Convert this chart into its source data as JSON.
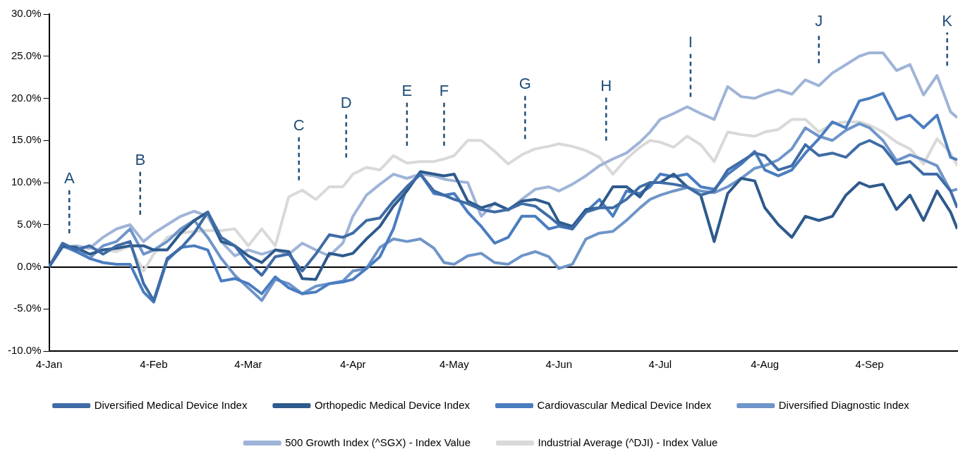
{
  "chart_data": {
    "type": "line",
    "legend": "bottom",
    "x": [
      "--01-04",
      "--01-08",
      "--01-12",
      "--01-16",
      "--01-20",
      "--01-24",
      "--01-28",
      "--02-01",
      "--02-04",
      "--02-08",
      "--02-12",
      "--02-16",
      "--02-20",
      "--02-24",
      "--02-28",
      "--03-04",
      "--03-08",
      "--03-12",
      "--03-16",
      "--03-20",
      "--03-24",
      "--03-28",
      "--04-01",
      "--04-04",
      "--04-08",
      "--04-12",
      "--04-16",
      "--04-20",
      "--04-24",
      "--04-28",
      "--05-01",
      "--05-04",
      "--05-08",
      "--05-12",
      "--05-16",
      "--05-20",
      "--05-24",
      "--05-28",
      "--06-01",
      "--06-04",
      "--06-08",
      "--06-12",
      "--06-16",
      "--06-20",
      "--06-24",
      "--06-28",
      "--07-01",
      "--07-04",
      "--07-08",
      "--07-12",
      "--07-16",
      "--07-20",
      "--07-24",
      "--07-28",
      "--08-01",
      "--08-04",
      "--08-08",
      "--08-12",
      "--08-16",
      "--08-20",
      "--08-24",
      "--08-28",
      "--09-01",
      "--09-04",
      "--09-08",
      "--09-12",
      "--09-16",
      "--09-20",
      "--09-24",
      "--09-28",
      "--09-30"
    ],
    "series": [
      {
        "name": "Diversified Medical Device Index",
        "color": "#3f6ca6",
        "values": [
          0,
          2.8,
          2,
          2.5,
          1.5,
          2.5,
          3,
          -2,
          -4,
          1,
          2.2,
          4,
          6.5,
          3.5,
          2.5,
          0.5,
          -1,
          1.2,
          1.5,
          -0.5,
          1.5,
          3.8,
          3.5,
          4,
          5.5,
          5.8,
          7.8,
          9.5,
          11,
          9,
          8.5,
          8,
          7.5,
          6.8,
          6.5,
          6.8,
          7.5,
          7.2,
          6,
          5,
          4.5,
          6.5,
          7,
          7,
          8,
          9.5,
          10,
          10,
          9.8,
          9.5,
          8.5,
          9,
          11.5,
          12.5,
          13.5,
          13.2,
          11.5,
          12,
          14.5,
          13.2,
          13.5,
          13,
          14.5,
          15,
          14.2,
          12.2,
          12.5,
          11,
          11,
          9,
          7
        ]
      },
      {
        "name": "Orthopedic Medical Device Index",
        "color": "#2e5a8c",
        "values": [
          0,
          2.5,
          2.3,
          1.5,
          2,
          2.2,
          2.5,
          2.5,
          2,
          2,
          4,
          5.5,
          6.5,
          3,
          2.5,
          1.3,
          0.5,
          2,
          1.8,
          -1.4,
          -1.5,
          1.6,
          1.3,
          1.6,
          3.3,
          4.8,
          7.2,
          9,
          11.3,
          11,
          10.8,
          11,
          7.8,
          7,
          7.5,
          6.8,
          7.8,
          8,
          7.5,
          5.3,
          4.8,
          6.8,
          7,
          9.5,
          9.5,
          8.3,
          10,
          10,
          11,
          9.5,
          8.5,
          3,
          8.7,
          10.5,
          10.2,
          7,
          5,
          3.5,
          6,
          5.5,
          6,
          8.5,
          10,
          9.5,
          9.8,
          6.8,
          8.5,
          5.5,
          9,
          6.5,
          4.5
        ]
      },
      {
        "name": "Cardiovascular Medical Device Index",
        "color": "#4a7dc0",
        "values": [
          0,
          2.5,
          1.8,
          1,
          0.5,
          0.3,
          0.3,
          -3,
          -4.2,
          0.8,
          2.3,
          2.5,
          2,
          -1.7,
          -1.4,
          -2,
          -3.2,
          -1.2,
          -2.5,
          -3.2,
          -3,
          -2,
          -1.8,
          -1.5,
          -0.2,
          1.2,
          4.5,
          9.5,
          11,
          8.7,
          8.5,
          8.7,
          6.5,
          4.8,
          2.8,
          3.5,
          6,
          6,
          4.5,
          4.8,
          4.5,
          6.5,
          8,
          6,
          9,
          8.7,
          9.5,
          11,
          10.7,
          11,
          9.5,
          9.2,
          11,
          12.2,
          13.7,
          11.5,
          10.8,
          11.5,
          13.5,
          15.2,
          17.2,
          16.5,
          19.7,
          20,
          20.6,
          17.5,
          18,
          16.5,
          18,
          13,
          12.7
        ]
      },
      {
        "name": "Diversified Diagnostic Index",
        "color": "#6f95c9",
        "values": [
          0,
          2.5,
          2.2,
          1,
          2.5,
          3,
          4.5,
          1.5,
          2,
          3,
          4.5,
          5.5,
          3.5,
          1,
          -1,
          -2.5,
          -4,
          -1.5,
          -2,
          -3.2,
          -2.3,
          -2,
          -1.7,
          -0.5,
          -0.2,
          2.3,
          3.3,
          3,
          3.3,
          2.2,
          0.5,
          0.3,
          1.3,
          1.6,
          0.5,
          0.3,
          1.3,
          1.8,
          1.2,
          -0.2,
          0.3,
          3.3,
          4,
          4.2,
          5.5,
          7,
          8,
          8.5,
          9,
          9.4,
          9,
          8.8,
          9.5,
          10.5,
          11.7,
          12,
          12.7,
          14,
          16.5,
          15.5,
          15,
          16.2,
          17,
          16.5,
          15,
          12.6,
          13.3,
          12.7,
          12,
          9,
          9.2
        ]
      },
      {
        "name": "500 Growth Index (^SGX) - Index Value",
        "color": "#9fb4d8",
        "values": [
          0,
          2.3,
          2.5,
          2.2,
          3.5,
          4.5,
          5,
          3,
          4,
          5,
          6,
          6.6,
          6,
          3,
          1.3,
          2,
          1.5,
          2,
          1.5,
          2.8,
          2,
          1.3,
          2.8,
          6,
          8.5,
          9.8,
          11,
          10.5,
          11,
          10.8,
          10.4,
          10.2,
          10,
          6,
          7.6,
          6.7,
          8,
          9.2,
          9.5,
          9,
          9.8,
          10.8,
          12,
          12.8,
          13.5,
          14.8,
          16,
          17.5,
          18.2,
          19,
          18.2,
          17.5,
          21.4,
          20.2,
          20,
          20.5,
          21,
          20.5,
          22.2,
          21.5,
          23,
          24,
          25,
          25.4,
          25.4,
          23.3,
          24,
          20.4,
          22.7,
          18.4,
          17.7
        ]
      },
      {
        "name": "Industrial Average (^DJI) - Index Value",
        "color": "#d9d9d9",
        "values": [
          0,
          2.5,
          2.3,
          2.2,
          2,
          1.8,
          2.5,
          -0.5,
          1.5,
          3.5,
          4,
          4.2,
          4.3,
          4.3,
          4.5,
          2.5,
          4.5,
          2.5,
          8.3,
          9.1,
          8,
          9.5,
          9.5,
          11,
          11.8,
          11.5,
          13.2,
          12.3,
          12.5,
          12.5,
          12.8,
          13.2,
          15,
          15,
          13.7,
          12.2,
          13.3,
          14,
          14.3,
          14.6,
          14.3,
          13.8,
          13,
          11,
          12.8,
          14.2,
          15,
          14.8,
          14.2,
          15.5,
          14.5,
          12.5,
          16,
          15.7,
          15.5,
          16,
          16.3,
          17.5,
          17.5,
          16,
          17,
          17.2,
          17.2,
          16.8,
          16,
          14.8,
          14,
          12.2,
          15.2,
          13.5,
          12
        ]
      }
    ],
    "xlim": [
      "--01-04",
      "--09-30"
    ],
    "xticks": [
      {
        "value": "--01-04",
        "label": "4-Jan"
      },
      {
        "value": "--02-04",
        "label": "4-Feb"
      },
      {
        "value": "--03-04",
        "label": "4-Mar"
      },
      {
        "value": "--04-04",
        "label": "4-Apr"
      },
      {
        "value": "--05-04",
        "label": "4-May"
      },
      {
        "value": "--06-04",
        "label": "4-Jun"
      },
      {
        "value": "--07-04",
        "label": "4-Jul"
      },
      {
        "value": "--08-04",
        "label": "4-Aug"
      },
      {
        "value": "--09-04",
        "label": "4-Sep"
      }
    ],
    "ylim": [
      -10,
      30
    ],
    "yticks": [
      {
        "value": -10,
        "label": "-10.0%"
      },
      {
        "value": -5,
        "label": "-5.0%"
      },
      {
        "value": 0,
        "label": "0.0%"
      },
      {
        "value": 5,
        "label": "5.0%"
      },
      {
        "value": 10,
        "label": "10.0%"
      },
      {
        "value": 15,
        "label": "15.0%"
      },
      {
        "value": 20,
        "label": "20.0%"
      },
      {
        "value": 25,
        "label": "25.0%"
      },
      {
        "value": 30,
        "label": "30.0%"
      }
    ],
    "ref_lines": [
      {
        "axis": "x",
        "value": "--01-10",
        "label": "A",
        "color": "#1f4e79",
        "line_style": "dashed"
      },
      {
        "axis": "x",
        "value": "--01-31",
        "label": "B",
        "color": "#1f4e79",
        "line_style": "dashed"
      },
      {
        "axis": "x",
        "value": "--03-19",
        "label": "C",
        "color": "#1f4e79",
        "line_style": "dashed"
      },
      {
        "axis": "x",
        "value": "--04-02",
        "label": "D",
        "color": "#1f4e79",
        "line_style": "dashed"
      },
      {
        "axis": "x",
        "value": "--04-20",
        "label": "E",
        "color": "#1f4e79",
        "line_style": "dashed"
      },
      {
        "axis": "x",
        "value": "--05-01",
        "label": "F",
        "color": "#1f4e79",
        "line_style": "dashed"
      },
      {
        "axis": "x",
        "value": "--05-25",
        "label": "G",
        "color": "#1f4e79",
        "line_style": "dashed"
      },
      {
        "axis": "x",
        "value": "--06-18",
        "label": "H",
        "color": "#1f4e79",
        "line_style": "dashed"
      },
      {
        "axis": "x",
        "value": "--07-13",
        "label": "I",
        "color": "#1f4e79",
        "line_style": "dashed"
      },
      {
        "axis": "x",
        "value": "--08-20",
        "label": "J",
        "color": "#1f4e79",
        "line_style": "dashed"
      },
      {
        "axis": "x",
        "value": "--09-27",
        "label": "K",
        "color": "#1f4e79",
        "line_style": "dashed"
      }
    ]
  }
}
